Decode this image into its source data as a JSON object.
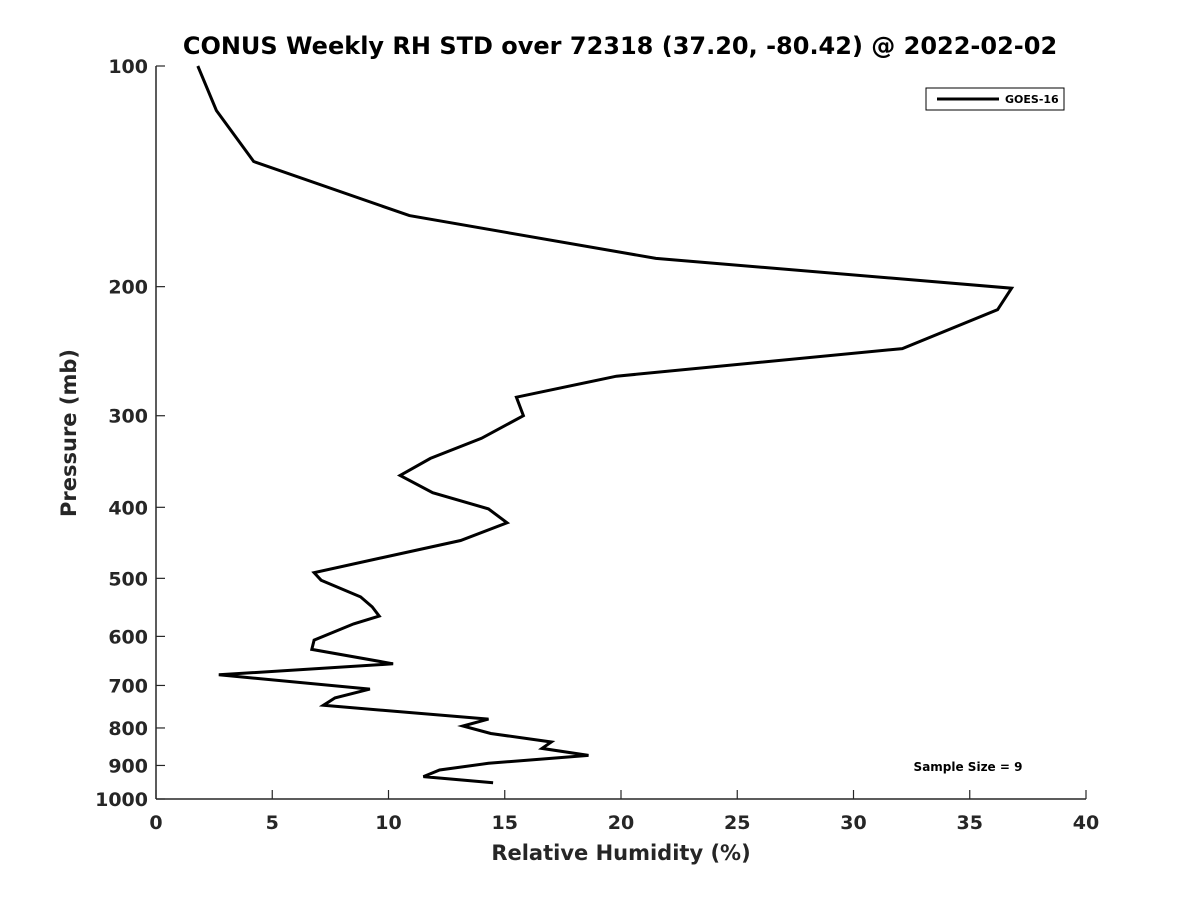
{
  "chart_data": {
    "type": "line",
    "title": "CONUS Weekly RH STD over 72318 (37.20, -80.42) @ 2022-02-02",
    "xlabel": "Relative Humidity (%)",
    "ylabel": "Pressure (mb)",
    "xlim": [
      0,
      40
    ],
    "ylim": [
      100,
      1000
    ],
    "y_scale": "log",
    "y_reversed": true,
    "grid": false,
    "legend_position": "top-right",
    "x_ticks": [
      "0",
      "5",
      "10",
      "15",
      "20",
      "25",
      "30",
      "35",
      "40"
    ],
    "y_ticks": [
      "100",
      "200",
      "300",
      "400",
      "500",
      "600",
      "700",
      "800",
      "900",
      "1000"
    ],
    "annotation": "Sample Size = 9",
    "series": [
      {
        "name": "GOES-16",
        "color": "#000000",
        "x": [
          1.8,
          2.6,
          4.2,
          10.9,
          21.5,
          36.8,
          36.2,
          32.1,
          19.8,
          15.5,
          15.8,
          14.0,
          11.8,
          10.5,
          11.9,
          14.3,
          15.1,
          13.1,
          6.8,
          7.1,
          8.8,
          9.3,
          9.6,
          8.5,
          6.8,
          6.7,
          10.2,
          2.7,
          9.2,
          7.7,
          7.2,
          14.3,
          13.2,
          14.4,
          17.0,
          16.6,
          18.6,
          14.3,
          12.2,
          11.5,
          14.5
        ],
        "y": [
          100,
          115,
          135,
          160,
          183,
          201,
          215,
          243,
          265,
          283,
          300,
          322,
          343,
          362,
          382,
          402,
          420,
          444,
          491,
          503,
          530,
          547,
          563,
          577,
          607,
          625,
          654,
          677,
          708,
          728,
          745,
          778,
          795,
          814,
          836,
          853,
          872,
          894,
          913,
          932,
          950
        ]
      }
    ]
  }
}
